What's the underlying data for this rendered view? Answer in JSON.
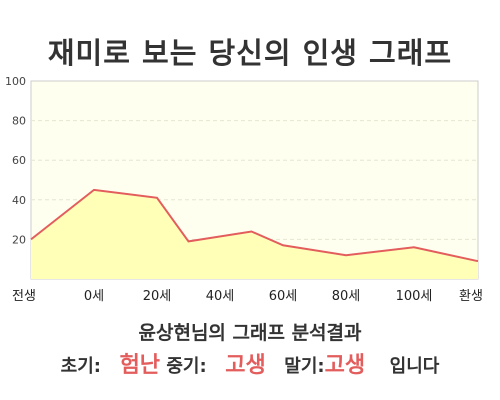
{
  "title": "재미로 보는 당신의 인생 그래프",
  "subtitle": "윤상현님의 그래프 분석결과",
  "result": {
    "early_label": "초기:",
    "early_value": "험난",
    "middle_label": "중기:",
    "middle_value": "고생",
    "late_label": "말기:",
    "late_value": "고생",
    "suffix": "입니다"
  },
  "colors": {
    "line": "#e35d5d",
    "area": "#ffffb8",
    "plot_background": "#fffff0",
    "highlight": "#e35d5d"
  },
  "chart_data": {
    "type": "area",
    "x_labels": [
      "전생",
      "0세",
      "20세",
      "40세",
      "60세",
      "80세",
      "100세",
      "환생"
    ],
    "y_ticks": [
      20,
      40,
      60,
      80,
      100
    ],
    "ylim": [
      0,
      100
    ],
    "grid": true,
    "series": [
      {
        "points": [
          {
            "x": "전생",
            "y": 20
          },
          {
            "x": "0세",
            "y": 45
          },
          {
            "x": "20세",
            "y": 41
          },
          {
            "x": "30세",
            "y": 19
          },
          {
            "x": "50세",
            "y": 24
          },
          {
            "x": "60세",
            "y": 17
          },
          {
            "x": "80세",
            "y": 12
          },
          {
            "x": "100세",
            "y": 16
          },
          {
            "x": "환생",
            "y": 9
          }
        ]
      }
    ]
  }
}
